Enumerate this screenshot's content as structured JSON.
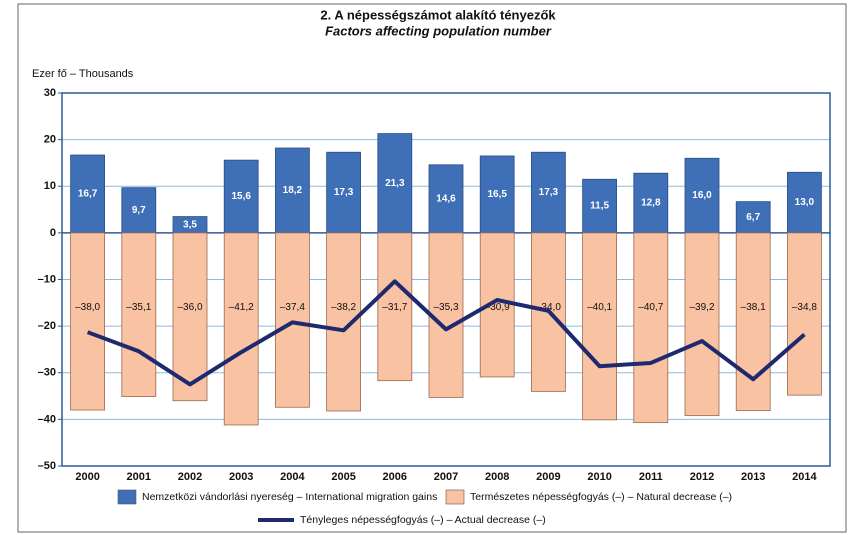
{
  "chart_data": {
    "type": "bar",
    "title": "2. A népességszámot alakító tényezők",
    "subtitle": "Factors affecting population number",
    "y_axis_label": "Ezer fő – Thousands",
    "categories": [
      "2000",
      "2001",
      "2002",
      "2003",
      "2004",
      "2005",
      "2006",
      "2007",
      "2008",
      "2009",
      "2010",
      "2011",
      "2012",
      "2013",
      "2014"
    ],
    "ylim": [
      -50,
      30
    ],
    "yticks": [
      {
        "value": -50,
        "label": "–50"
      },
      {
        "value": -40,
        "label": "–40"
      },
      {
        "value": -30,
        "label": "–30"
      },
      {
        "value": -20,
        "label": "–20"
      },
      {
        "value": -10,
        "label": "–10"
      },
      0,
      10,
      20,
      30
    ],
    "grid": true,
    "series": [
      {
        "name": "Nemzetközi vándorlási nyereség – International migration gains",
        "type": "bar",
        "color": "#3f6fb6",
        "values": [
          16.7,
          9.7,
          3.5,
          15.6,
          18.2,
          17.3,
          21.3,
          14.6,
          16.5,
          17.3,
          11.5,
          12.8,
          16.0,
          6.7,
          13.0
        ],
        "value_labels": [
          "16,7",
          "9,7",
          "3,5",
          "15,6",
          "18,2",
          "17,3",
          "21,3",
          "14,6",
          "16,5",
          "17,3",
          "11,5",
          "12,8",
          "16,0",
          "6,7",
          "13,0"
        ]
      },
      {
        "name": "Természetes népességfogyás (–) – Natural decrease (–)",
        "type": "bar",
        "color": "#f8c2a3",
        "values": [
          -38.0,
          -35.1,
          -36.0,
          -41.2,
          -37.4,
          -38.2,
          -31.7,
          -35.3,
          -30.9,
          -34.0,
          -40.1,
          -40.7,
          -39.2,
          -38.1,
          -34.8
        ],
        "value_labels": [
          "–38,0",
          "–35,1",
          "–36,0",
          "–41,2",
          "–37,4",
          "–38,2",
          "–31,7",
          "–35,3",
          "–30,9",
          "–34,0",
          "–40,1",
          "–40,7",
          "–39,2",
          "–38,1",
          "–34,8"
        ]
      },
      {
        "name": "Tényleges népességfogyás (–) – Actual decrease (–)",
        "type": "line",
        "color": "#1f2a6e",
        "values": [
          -21.3,
          -25.4,
          -32.5,
          -25.6,
          -19.2,
          -20.9,
          -10.4,
          -20.7,
          -14.4,
          -16.7,
          -28.6,
          -27.9,
          -23.2,
          -31.4,
          -21.8
        ]
      }
    ]
  }
}
